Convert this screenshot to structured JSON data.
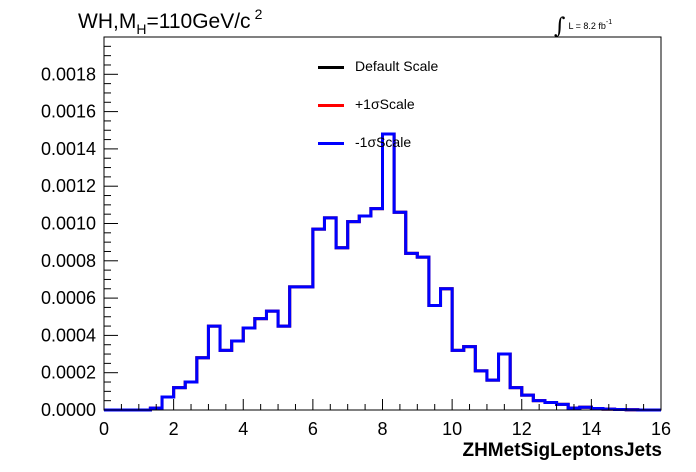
{
  "header": {
    "title_prefix": "WH,M",
    "title_sub": "H",
    "title_mid": "=110GeV/c",
    "title_sup": "2",
    "lumi_text": "L = 8.2 fb",
    "lumi_sup": "-1"
  },
  "legend": [
    {
      "label": "Default Scale",
      "color": "#000000"
    },
    {
      "label": "+1σScale",
      "color": "#ff0000"
    },
    {
      "label": "-1σScale",
      "color": "#0000ff"
    }
  ],
  "chart_data": {
    "type": "histogram",
    "xlabel": "ZHMetSigLeptonsJets",
    "ylabel": "",
    "xlim": [
      0,
      16
    ],
    "ylim": [
      0,
      0.002
    ],
    "xticks": [
      "0",
      "2",
      "4",
      "6",
      "8",
      "10",
      "12",
      "14",
      "16"
    ],
    "yticks": [
      "0.0000",
      "0.0002",
      "0.0004",
      "0.0006",
      "0.0008",
      "0.0010",
      "0.0012",
      "0.0014",
      "0.0016",
      "0.0018"
    ],
    "bin_edges": [
      0,
      0.333,
      0.667,
      1,
      1.333,
      1.667,
      2,
      2.333,
      2.667,
      3,
      3.333,
      3.667,
      4,
      4.333,
      4.667,
      5,
      5.333,
      5.667,
      6,
      6.333,
      6.667,
      7,
      7.333,
      7.667,
      8,
      8.333,
      8.667,
      9,
      9.333,
      9.667,
      10,
      10.333,
      10.667,
      11,
      11.333,
      11.667,
      12,
      12.333,
      12.667,
      13,
      13.333,
      13.667,
      14,
      14.333,
      14.667,
      15,
      15.333,
      15.667,
      16
    ],
    "series": [
      {
        "name": "Default Scale",
        "color": "#000000",
        "values": [
          0,
          0,
          0,
          0,
          1e-05,
          7e-05,
          0.00012,
          0.00015,
          0.00028,
          0.00045,
          0.00032,
          0.00037,
          0.00044,
          0.00049,
          0.00053,
          0.00045,
          0.00066,
          0.00066,
          0.00097,
          0.00103,
          0.00087,
          0.00101,
          0.00104,
          0.00108,
          0.00148,
          0.00106,
          0.00084,
          0.00082,
          0.00056,
          0.00065,
          0.00032,
          0.00034,
          0.00021,
          0.00016,
          0.0003,
          0.00012,
          8e-05,
          5e-05,
          4e-05,
          3e-05,
          1e-05,
          1.5e-05,
          8e-06,
          5e-06,
          3e-06,
          1e-06,
          0,
          0
        ]
      },
      {
        "name": "+1σScale",
        "color": "#ff0000",
        "values": [
          0,
          0,
          0,
          0,
          1e-05,
          7e-05,
          0.00012,
          0.00015,
          0.00028,
          0.00045,
          0.00032,
          0.00037,
          0.00044,
          0.00049,
          0.00053,
          0.00045,
          0.00066,
          0.00066,
          0.00097,
          0.00103,
          0.00087,
          0.00101,
          0.00104,
          0.00108,
          0.00148,
          0.00106,
          0.00084,
          0.00082,
          0.00056,
          0.00065,
          0.00032,
          0.00034,
          0.00021,
          0.00016,
          0.0003,
          0.00012,
          8e-05,
          5e-05,
          4e-05,
          3e-05,
          1e-05,
          1.5e-05,
          8e-06,
          5e-06,
          3e-06,
          1e-06,
          0,
          0
        ]
      },
      {
        "name": "-1σScale",
        "color": "#0000ff",
        "values": [
          0,
          0,
          0,
          0,
          1e-05,
          7e-05,
          0.00012,
          0.00015,
          0.00028,
          0.00045,
          0.00032,
          0.00037,
          0.00044,
          0.00049,
          0.00053,
          0.00045,
          0.00066,
          0.00066,
          0.00097,
          0.00103,
          0.00087,
          0.00101,
          0.00104,
          0.00108,
          0.00148,
          0.00106,
          0.00084,
          0.00082,
          0.00056,
          0.00065,
          0.00032,
          0.00034,
          0.00021,
          0.00016,
          0.0003,
          0.00012,
          8e-05,
          5e-05,
          4e-05,
          3e-05,
          1e-05,
          1.5e-05,
          8e-06,
          5e-06,
          3e-06,
          1e-06,
          0,
          0
        ]
      }
    ]
  }
}
